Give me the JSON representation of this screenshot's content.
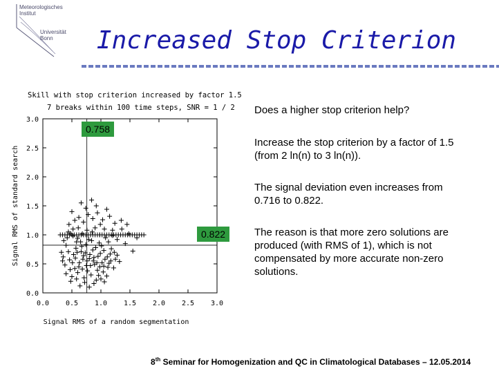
{
  "logo": {
    "line1": "Meteorologisches",
    "line2": "Institut",
    "line3": "Universität",
    "line4": "Bonn"
  },
  "title": "Increased Stop Criterion",
  "badges": {
    "top": "0.758",
    "mid": "0.822"
  },
  "text": {
    "p1": "Does a higher stop criterion help?",
    "p2": "Increase the stop criterion by a factor of 1.5 (from 2 ln(n) to 3 ln(n)).",
    "p3": "The signal deviation even increases from 0.716 to 0.822.",
    "p4": "The reason is that more zero solutions are produced (with RMS of 1), which is not compensated by more accurate non-zero solutions."
  },
  "footer": {
    "num": "8",
    "sup": "th",
    "rest": " Seminar for Homogenization and QC in Climatological Databases – 12.05.2014"
  },
  "chart_data": {
    "type": "scatter",
    "title": "Skill with stop criterion increased by factor 1.5",
    "subtitle": "7 breaks within 100 time steps, SNR = 1 / 2",
    "xlabel": "Signal RMS of a random segmentation",
    "ylabel": "Signal RMS of standard search",
    "xlim": [
      0,
      3
    ],
    "ylim": [
      0,
      3
    ],
    "xticks": [
      "0.0",
      "0.5",
      "1.0",
      "1.5",
      "2.0",
      "2.5",
      "3.0"
    ],
    "yticks": [
      "0.0",
      "0.5",
      "1.0",
      "1.5",
      "2.0",
      "2.5",
      "3.0"
    ],
    "vline_x": 0.758,
    "hline_y": 0.822,
    "marker": "plus",
    "points": [
      [
        0.42,
        0.95
      ],
      [
        0.48,
        1.02
      ],
      [
        0.52,
        0.98
      ],
      [
        0.58,
        0.88
      ],
      [
        0.61,
        1.12
      ],
      [
        0.66,
        0.71
      ],
      [
        0.7,
        0.64
      ],
      [
        0.74,
        0.83
      ],
      [
        0.76,
        0.55
      ],
      [
        0.79,
        0.92
      ],
      [
        0.82,
        0.47
      ],
      [
        0.85,
        1.05
      ],
      [
        0.88,
        0.61
      ],
      [
        0.91,
        0.78
      ],
      [
        0.94,
        0.39
      ],
      [
        0.97,
        0.86
      ],
      [
        0.99,
        1.18
      ],
      [
        1.02,
        0.52
      ],
      [
        1.05,
        0.73
      ],
      [
        1.08,
        0.95
      ],
      [
        1.12,
        0.44
      ],
      [
        1.16,
        0.67
      ],
      [
        1.2,
        0.99
      ],
      [
        1.25,
        0.58
      ],
      [
        0.35,
        0.62
      ],
      [
        0.38,
        0.48
      ],
      [
        0.4,
        0.33
      ],
      [
        0.44,
        0.71
      ],
      [
        0.46,
        0.57
      ],
      [
        0.5,
        0.28
      ],
      [
        0.53,
        0.66
      ],
      [
        0.55,
        0.42
      ],
      [
        0.57,
        0.77
      ],
      [
        0.6,
        0.35
      ],
      [
        0.63,
        0.52
      ],
      [
        0.65,
        0.88
      ],
      [
        0.68,
        0.41
      ],
      [
        0.71,
        0.26
      ],
      [
        0.73,
        0.69
      ],
      [
        0.77,
        0.38
      ],
      [
        0.8,
        0.59
      ],
      [
        0.83,
        0.31
      ],
      [
        0.86,
        0.74
      ],
      [
        0.89,
        0.49
      ],
      [
        0.92,
        0.22
      ],
      [
        0.95,
        0.63
      ],
      [
        0.98,
        0.45
      ],
      [
        1.01,
        0.81
      ],
      [
        1.04,
        0.36
      ],
      [
        1.07,
        0.58
      ],
      [
        1.1,
        0.29
      ],
      [
        1.14,
        0.51
      ],
      [
        1.18,
        0.76
      ],
      [
        1.22,
        0.43
      ],
      [
        1.28,
        0.65
      ],
      [
        1.32,
        0.54
      ],
      [
        0.45,
        1.18
      ],
      [
        0.55,
        1.25
      ],
      [
        0.62,
        1.3
      ],
      [
        0.7,
        1.22
      ],
      [
        0.78,
        1.35
      ],
      [
        0.86,
        1.28
      ],
      [
        0.94,
        1.38
      ],
      [
        1.03,
        1.26
      ],
      [
        1.15,
        1.32
      ],
      [
        1.24,
        1.2
      ],
      [
        0.5,
        1.4
      ],
      [
        0.74,
        1.46
      ],
      [
        0.92,
        1.5
      ],
      [
        1.1,
        1.44
      ],
      [
        0.66,
        1.55
      ],
      [
        0.84,
        1.6
      ],
      [
        1.36,
        1.1
      ],
      [
        1.42,
        0.85
      ],
      [
        1.48,
        1.02
      ],
      [
        1.55,
        0.72
      ],
      [
        1.62,
        0.95
      ],
      [
        1.35,
        1.25
      ],
      [
        1.45,
        1.18
      ],
      [
        0.58,
        0.24
      ],
      [
        0.72,
        0.18
      ],
      [
        0.88,
        0.16
      ],
      [
        1.0,
        0.24
      ],
      [
        0.64,
        0.12
      ],
      [
        0.8,
        0.1
      ],
      [
        0.96,
        0.3
      ],
      [
        1.06,
        0.19
      ],
      [
        0.48,
        0.2
      ],
      [
        0.4,
        0.82
      ],
      [
        0.36,
        0.9
      ],
      [
        0.44,
        1.05
      ],
      [
        0.52,
        1.1
      ],
      [
        0.6,
        0.94
      ],
      [
        0.68,
        1.02
      ],
      [
        0.76,
        1.08
      ],
      [
        0.84,
        0.9
      ],
      [
        0.9,
        1.12
      ],
      [
        0.98,
        1.0
      ],
      [
        1.06,
        1.1
      ],
      [
        1.13,
        0.88
      ],
      [
        1.2,
        1.08
      ],
      [
        1.28,
        0.92
      ],
      [
        0.32,
        0.7
      ],
      [
        0.34,
        0.55
      ],
      [
        0.56,
        0.6
      ],
      [
        0.62,
        0.45
      ],
      [
        0.69,
        0.58
      ],
      [
        0.75,
        0.47
      ],
      [
        0.81,
        0.66
      ],
      [
        0.87,
        0.55
      ],
      [
        0.93,
        0.52
      ],
      [
        0.99,
        0.68
      ],
      [
        1.05,
        0.46
      ],
      [
        1.11,
        0.62
      ],
      [
        1.17,
        0.55
      ],
      [
        1.23,
        0.7
      ],
      [
        0.47,
        0.4
      ],
      [
        0.51,
        0.52
      ],
      [
        0.59,
        0.7
      ],
      [
        0.67,
        0.8
      ]
    ],
    "zero_points_x": [
      0.3,
      0.34,
      0.38,
      0.42,
      0.46,
      0.5,
      0.54,
      0.58,
      0.62,
      0.66,
      0.7,
      0.74,
      0.78,
      0.82,
      0.86,
      0.9,
      0.94,
      0.98,
      1.02,
      1.06,
      1.1,
      1.14,
      1.18,
      1.22,
      1.26,
      1.3,
      1.34,
      1.38,
      1.42,
      1.46,
      1.5,
      1.54,
      1.58,
      1.62,
      1.66,
      1.7,
      1.74
    ],
    "zero_y": 1.0
  }
}
